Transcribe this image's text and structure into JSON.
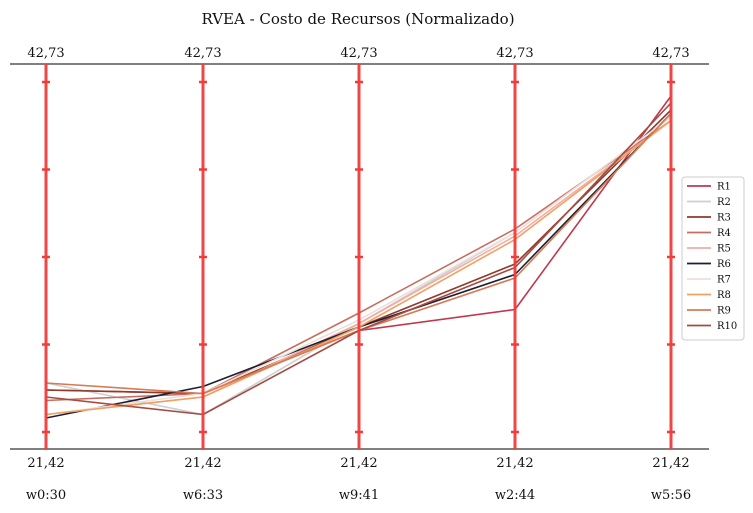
{
  "chart_data": {
    "type": "line",
    "subtype": "parallel-coordinates",
    "title": "RVEA - Costo de Recursos (Normalizado)",
    "axes": [
      "w0:30",
      "w6:33",
      "w9:41",
      "w2:44",
      "w5:56"
    ],
    "axis_top_labels": [
      "42,73",
      "42,73",
      "42,73",
      "42,73",
      "42,73"
    ],
    "axis_bottom_labels": [
      "21,42",
      "21,42",
      "21,42",
      "21,42",
      "21,42"
    ],
    "ylim": [
      0,
      1
    ],
    "legend_position": "right",
    "axis_color": "#f03c3c",
    "series": [
      {
        "name": "R1",
        "color": "#c0394e",
        "values": [
          0.12,
          0.11,
          0.29,
          0.35,
          0.96
        ]
      },
      {
        "name": "R2",
        "color": "#cfcfcf",
        "values": [
          0.14,
          0.05,
          0.31,
          0.57,
          0.9
        ]
      },
      {
        "name": "R3",
        "color": "#8f3a2c",
        "values": [
          0.12,
          0.11,
          0.3,
          0.48,
          0.92
        ]
      },
      {
        "name": "R4",
        "color": "#c86e60",
        "values": [
          0.09,
          0.11,
          0.34,
          0.58,
          0.89
        ]
      },
      {
        "name": "R5",
        "color": "#f3aca6",
        "values": [
          0.05,
          0.1,
          0.31,
          0.56,
          0.89
        ]
      },
      {
        "name": "R6",
        "color": "#1d1f33",
        "values": [
          0.04,
          0.13,
          0.3,
          0.45,
          0.91
        ]
      },
      {
        "name": "R7",
        "color": "#ece0da",
        "values": [
          0.05,
          0.11,
          0.32,
          0.57,
          0.9
        ]
      },
      {
        "name": "R8",
        "color": "#f2a060",
        "values": [
          0.05,
          0.1,
          0.3,
          0.55,
          0.89
        ]
      },
      {
        "name": "R9",
        "color": "#d77a52",
        "values": [
          0.14,
          0.11,
          0.29,
          0.44,
          0.91
        ]
      },
      {
        "name": "R10",
        "color": "#a54c42",
        "values": [
          0.1,
          0.05,
          0.29,
          0.47,
          0.94
        ]
      }
    ]
  }
}
